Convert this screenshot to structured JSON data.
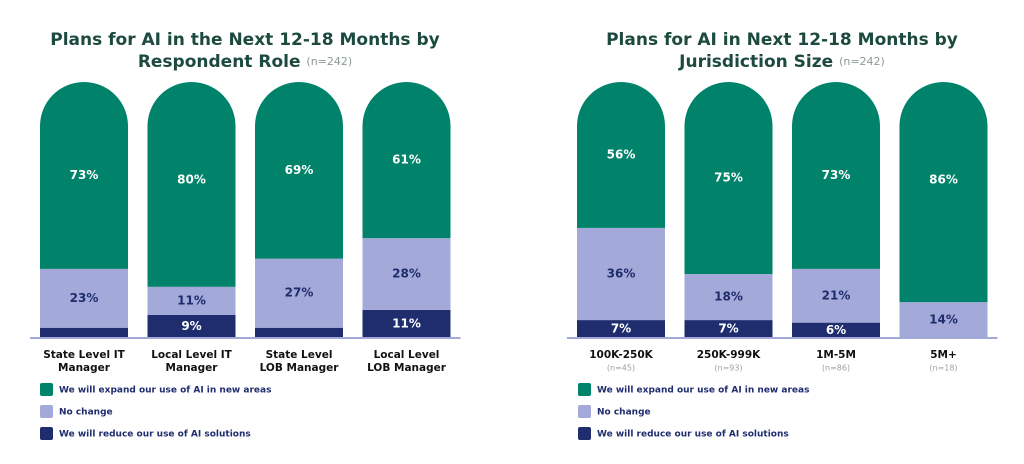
{
  "chart_data": [
    {
      "type": "stacked-bar",
      "title": [
        "Plans for AI in the Next 12-18 Months by",
        "Respondent Role"
      ],
      "title_note": "(n=242)",
      "categories": [
        [
          "State Level IT",
          "Manager"
        ],
        [
          "Local Level IT",
          "Manager"
        ],
        [
          "State Level",
          "LOB Manager"
        ],
        [
          "Local Level",
          "LOB Manager"
        ]
      ],
      "series": [
        {
          "name": "We will expand our use of AI in new areas",
          "color": "#00836a",
          "values": [
            73,
            80,
            69,
            61
          ],
          "value_labels": [
            "73%",
            "80%",
            "69%",
            "61%"
          ]
        },
        {
          "name": "No change",
          "color": "#a3a9d8",
          "values": [
            23,
            11,
            27,
            28
          ],
          "value_labels": [
            "23%",
            "11%",
            "27%",
            "28%"
          ]
        },
        {
          "name": "We will reduce our use of AI solutions",
          "color": "#1f2d6e",
          "values": [
            4,
            9,
            4,
            11
          ],
          "value_labels": [
            null,
            "9%",
            null,
            "11%"
          ]
        }
      ]
    },
    {
      "type": "stacked-bar",
      "title": [
        "Plans for AI in Next 12-18 Months by",
        "Jurisdiction Size"
      ],
      "title_note": "(n=242)",
      "categories": [
        "100K-250K",
        "250K-999K",
        "1M-5M",
        "5M+"
      ],
      "category_notes": [
        "(n=45)",
        "(n=93)",
        "(n=86)",
        "(n=18)"
      ],
      "series": [
        {
          "name": "We will expand our use of AI in new areas",
          "color": "#00836a",
          "values": [
            56,
            75,
            73,
            86
          ],
          "value_labels": [
            "56%",
            "75%",
            "73%",
            "86%"
          ]
        },
        {
          "name": "No change",
          "color": "#a3a9d8",
          "values": [
            36,
            18,
            21,
            14
          ],
          "value_labels": [
            "36%",
            "18%",
            "21%",
            "14%"
          ]
        },
        {
          "name": "We will reduce our use of AI solutions",
          "color": "#1f2d6e",
          "values": [
            7,
            7,
            6,
            0
          ],
          "value_labels": [
            "7%",
            "7%",
            "6%",
            null
          ]
        }
      ]
    }
  ]
}
